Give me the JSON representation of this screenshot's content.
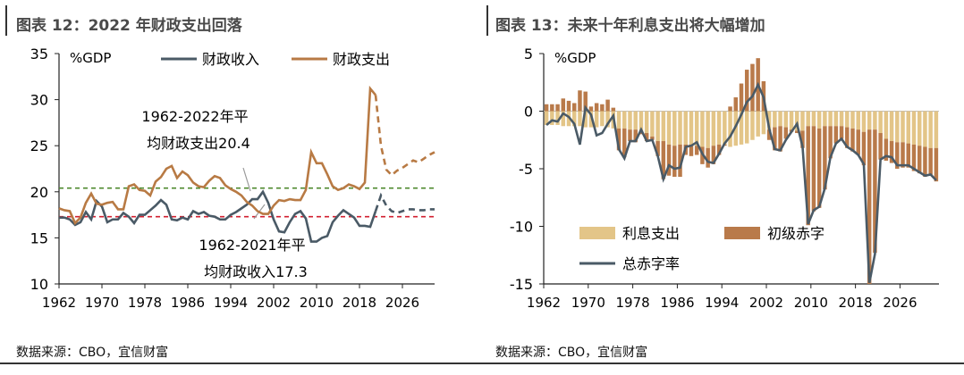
{
  "left": {
    "title": "图表 12：2022 年财政支出回落",
    "source": "数据来源：CBO，宜信财富"
  },
  "right": {
    "title": "图表 13：未来十年利息支出将大幅增加",
    "source": "数据来源：CBO，宜信财富"
  },
  "chart_data": [
    {
      "type": "line",
      "ylabel": "%GDP",
      "ylim": [
        10,
        35
      ],
      "xlim": [
        1962,
        2032
      ],
      "x_ticks": [
        "1962",
        "1970",
        "1978",
        "1986",
        "1994",
        "2002",
        "2010",
        "2018",
        "2026"
      ],
      "y_ticks": [
        "10",
        "15",
        "20",
        "25",
        "30",
        "35"
      ],
      "legend_position": "top",
      "annotations": [
        {
          "text_line1": "1962-2022年平",
          "text_line2": "均财政支出20.4"
        },
        {
          "text_line1": "1962-2021年平",
          "text_line2": "均财政收入17.3"
        }
      ],
      "reference_lines": [
        {
          "value": 20.4,
          "color": "#4e8a2e"
        },
        {
          "value": 17.3,
          "color": "#d21f2f"
        }
      ],
      "series": [
        {
          "name": "财政收入",
          "color": "#4a5a66",
          "x": [
            1962,
            1963,
            1964,
            1965,
            1966,
            1967,
            1968,
            1969,
            1970,
            1971,
            1972,
            1973,
            1974,
            1975,
            1976,
            1977,
            1978,
            1979,
            1980,
            1981,
            1982,
            1983,
            1984,
            1985,
            1986,
            1987,
            1988,
            1989,
            1990,
            1991,
            1992,
            1993,
            1994,
            1995,
            1996,
            1997,
            1998,
            1999,
            2000,
            2001,
            2002,
            2003,
            2004,
            2005,
            2006,
            2007,
            2008,
            2009,
            2010,
            2011,
            2012,
            2013,
            2014,
            2015,
            2016,
            2017,
            2018,
            2019,
            2020,
            2021,
            2022,
            2023,
            2024,
            2025,
            2026,
            2027,
            2028,
            2029,
            2030,
            2031,
            2032
          ],
          "values": [
            17.2,
            17.2,
            17.0,
            16.4,
            16.7,
            17.8,
            17.0,
            19.0,
            18.4,
            16.7,
            17.0,
            17.0,
            17.7,
            17.3,
            16.6,
            17.5,
            17.5,
            18.0,
            18.5,
            19.1,
            18.6,
            17.0,
            16.9,
            17.2,
            17.0,
            17.9,
            17.6,
            17.8,
            17.4,
            17.3,
            17.0,
            17.0,
            17.5,
            17.8,
            18.2,
            18.6,
            19.2,
            19.2,
            20.0,
            18.8,
            17.0,
            15.7,
            15.6,
            16.7,
            17.6,
            17.9,
            17.1,
            14.6,
            14.6,
            15.0,
            15.2,
            16.7,
            17.4,
            18.0,
            17.6,
            17.2,
            16.3,
            16.3,
            16.2,
            17.9,
            19.6,
            18.5,
            17.9,
            17.7,
            17.9,
            18.1,
            18.1,
            18.0,
            18.0,
            18.1,
            18.1
          ]
        },
        {
          "name": "财政支出",
          "color": "#b87a44",
          "x": [
            1962,
            1963,
            1964,
            1965,
            1966,
            1967,
            1968,
            1969,
            1970,
            1971,
            1972,
            1973,
            1974,
            1975,
            1976,
            1977,
            1978,
            1979,
            1980,
            1981,
            1982,
            1983,
            1984,
            1985,
            1986,
            1987,
            1988,
            1989,
            1990,
            1991,
            1992,
            1993,
            1994,
            1995,
            1996,
            1997,
            1998,
            1999,
            2000,
            2001,
            2002,
            2003,
            2004,
            2005,
            2006,
            2007,
            2008,
            2009,
            2010,
            2011,
            2012,
            2013,
            2014,
            2015,
            2016,
            2017,
            2018,
            2019,
            2020,
            2021,
            2022,
            2023,
            2024,
            2025,
            2026,
            2027,
            2028,
            2029,
            2030,
            2031,
            2032
          ],
          "values": [
            18.2,
            18.0,
            17.9,
            16.6,
            17.2,
            18.8,
            19.8,
            18.7,
            18.6,
            18.8,
            18.9,
            18.1,
            18.1,
            20.6,
            20.8,
            20.2,
            20.1,
            19.6,
            21.1,
            21.6,
            22.5,
            22.8,
            21.5,
            22.2,
            21.8,
            21.0,
            20.6,
            20.5,
            21.2,
            21.7,
            21.5,
            20.7,
            20.3,
            20.0,
            19.6,
            18.9,
            18.5,
            17.9,
            17.6,
            17.6,
            18.5,
            19.1,
            19.0,
            19.2,
            19.1,
            19.1,
            20.2,
            24.3,
            23.1,
            23.1,
            21.9,
            20.6,
            20.2,
            20.4,
            20.8,
            20.6,
            20.3,
            21.0,
            31.2,
            30.5,
            25.0,
            22.4,
            21.8,
            22.3,
            22.6,
            23.0,
            23.4,
            23.2,
            23.6,
            24.0,
            24.3
          ],
          "projection_from": 2021
        }
      ]
    },
    {
      "type": "bar",
      "ylabel": "%GDP",
      "ylim": [
        -15,
        5
      ],
      "xlim": [
        1962,
        2032
      ],
      "x_ticks": [
        "1962",
        "1970",
        "1978",
        "1986",
        "1994",
        "2002",
        "2010",
        "2018",
        "2026"
      ],
      "y_ticks": [
        "5",
        "0",
        "-5",
        "-10",
        "-15"
      ],
      "legend_position": "bottom-center",
      "x": [
        1962,
        1963,
        1964,
        1965,
        1966,
        1967,
        1968,
        1969,
        1970,
        1971,
        1972,
        1973,
        1974,
        1975,
        1976,
        1977,
        1978,
        1979,
        1980,
        1981,
        1982,
        1983,
        1984,
        1985,
        1986,
        1987,
        1988,
        1989,
        1990,
        1991,
        1992,
        1993,
        1994,
        1995,
        1996,
        1997,
        1998,
        1999,
        2000,
        2001,
        2002,
        2003,
        2004,
        2005,
        2006,
        2007,
        2008,
        2009,
        2010,
        2011,
        2012,
        2013,
        2014,
        2015,
        2016,
        2017,
        2018,
        2019,
        2020,
        2021,
        2022,
        2023,
        2024,
        2025,
        2026,
        2027,
        2028,
        2029,
        2030,
        2031,
        2032
      ],
      "series": [
        {
          "name": "利息支出",
          "color": "#e3c588",
          "values": [
            -1.2,
            -1.2,
            -1.2,
            -1.3,
            -1.3,
            -1.3,
            -1.3,
            -1.4,
            -1.4,
            -1.4,
            -1.3,
            -1.4,
            -1.5,
            -1.5,
            -1.5,
            -1.6,
            -1.6,
            -1.7,
            -1.9,
            -2.2,
            -2.6,
            -2.6,
            -2.9,
            -3.0,
            -2.9,
            -2.9,
            -2.9,
            -3.0,
            -3.1,
            -3.2,
            -3.0,
            -2.9,
            -2.9,
            -3.1,
            -3.0,
            -2.9,
            -2.8,
            -2.5,
            -2.2,
            -2.0,
            -1.6,
            -1.4,
            -1.3,
            -1.4,
            -1.6,
            -1.7,
            -1.7,
            -1.3,
            -1.3,
            -1.5,
            -1.3,
            -1.3,
            -1.3,
            -1.3,
            -1.4,
            -1.5,
            -1.6,
            -1.8,
            -1.6,
            -1.6,
            -1.9,
            -2.4,
            -2.6,
            -2.7,
            -2.7,
            -2.8,
            -2.9,
            -3.0,
            -3.1,
            -3.2,
            -3.2
          ]
        },
        {
          "name": "初级赤字",
          "color": "#b97a4a",
          "values": [
            0.6,
            0.6,
            0.6,
            1.1,
            0.9,
            0.7,
            1.8,
            1.7,
            0.4,
            0.7,
            0.6,
            1.0,
            0.3,
            -1.9,
            -2.5,
            -1.0,
            -1.1,
            -0.3,
            -0.7,
            -0.3,
            -1.3,
            -3.3,
            -2.7,
            -2.7,
            -2.8,
            -0.9,
            -1.0,
            -0.8,
            -1.5,
            -1.7,
            -1.6,
            -0.9,
            -0.1,
            0.4,
            1.2,
            2.4,
            3.6,
            4.1,
            4.6,
            2.6,
            -0.9,
            -2.0,
            -2.2,
            -1.0,
            -0.2,
            -0.2,
            -1.5,
            -8.6,
            -7.4,
            -6.9,
            -5.5,
            -2.8,
            -1.5,
            -1.1,
            -1.8,
            -2.0,
            -2.2,
            -2.9,
            -13.4,
            -10.7,
            -2.3,
            -1.9,
            -1.9,
            -2.3,
            -2.2,
            -2.1,
            -2.3,
            -2.4,
            -2.6,
            -2.4,
            -2.9
          ]
        },
        {
          "name": "总赤字率",
          "color": "#4a5a66",
          "type": "line",
          "values": [
            -1.2,
            -0.8,
            -0.9,
            -0.2,
            -0.5,
            -1.1,
            -2.9,
            0.3,
            -0.3,
            -2.1,
            -1.9,
            -1.1,
            -0.4,
            -3.3,
            -4.1,
            -2.6,
            -2.6,
            -1.6,
            -2.6,
            -2.5,
            -3.9,
            -5.9,
            -4.7,
            -5.0,
            -4.9,
            -3.1,
            -3.0,
            -2.7,
            -3.7,
            -4.4,
            -4.5,
            -3.7,
            -2.8,
            -2.2,
            -1.3,
            -0.3,
            0.8,
            1.3,
            2.3,
            1.2,
            -1.5,
            -3.3,
            -3.4,
            -2.5,
            -1.8,
            -1.1,
            -3.1,
            -9.8,
            -8.6,
            -8.3,
            -6.7,
            -4.0,
            -2.8,
            -2.4,
            -3.1,
            -3.4,
            -3.8,
            -4.6,
            -14.9,
            -12.4,
            -4.2,
            -3.9,
            -4.0,
            -4.7,
            -4.7,
            -4.7,
            -5.0,
            -5.3,
            -5.6,
            -5.5,
            -6.0
          ]
        }
      ]
    }
  ]
}
